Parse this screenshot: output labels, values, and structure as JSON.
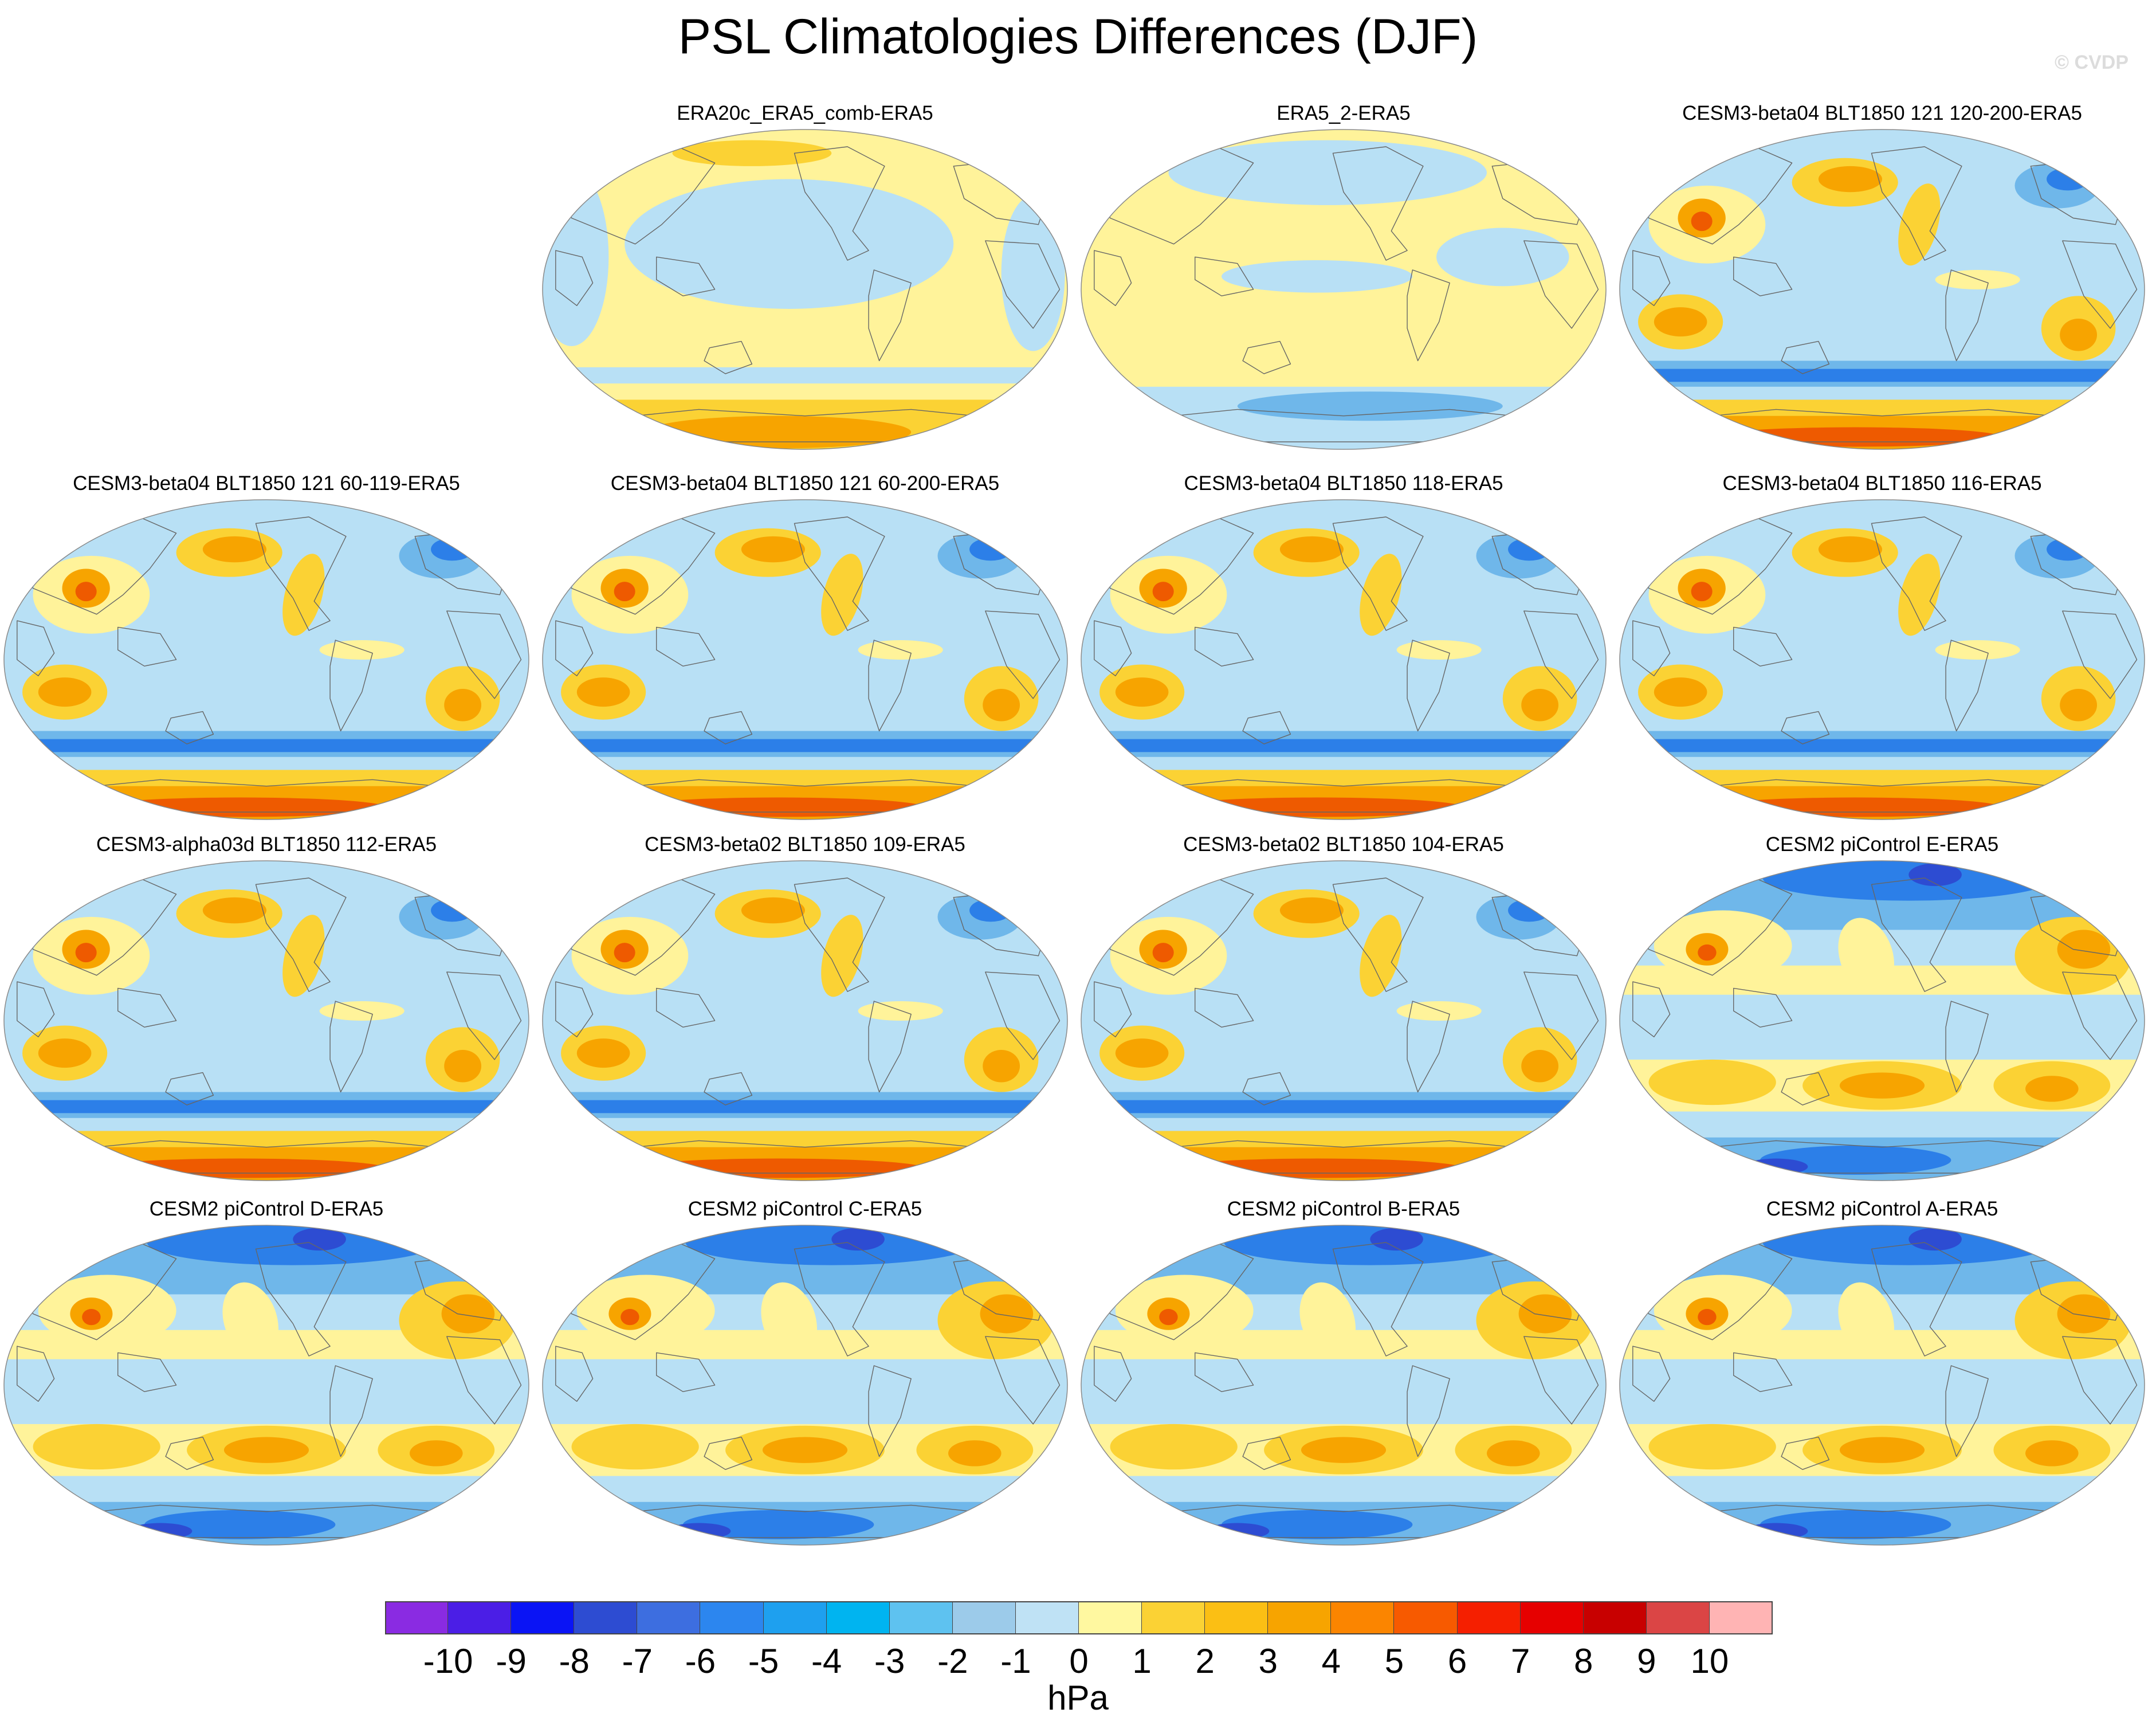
{
  "title": "PSL Climatologies Differences (DJF)",
  "watermark": "© CVDP",
  "colors": {
    "ocean_base": "#b8e0f5",
    "positive_light": "#fff39a",
    "positive_mid": "#fbd234",
    "positive_strong": "#f7a400",
    "positive_high": "#ee5a00",
    "negative_mid": "#6fb7ea",
    "negative_strong": "#2c7fe8",
    "negative_high": "#2d4cd2",
    "coast": "#666666"
  },
  "panels": [
    {
      "title": "ERA20c_ERA5_comb-ERA5",
      "style": "era20c"
    },
    {
      "title": "ERA5_2-ERA5",
      "style": "era5"
    },
    {
      "title": "CESM3-beta04 BLT1850 121 120-200-ERA5",
      "style": "cesm3"
    },
    {
      "title": "CESM3-beta04 BLT1850 121 60-119-ERA5",
      "style": "cesm3"
    },
    {
      "title": "CESM3-beta04 BLT1850 121 60-200-ERA5",
      "style": "cesm3"
    },
    {
      "title": "CESM3-beta04 BLT1850 118-ERA5",
      "style": "cesm3"
    },
    {
      "title": "CESM3-beta04 BLT1850 116-ERA5",
      "style": "cesm3"
    },
    {
      "title": "CESM3-alpha03d BLT1850 112-ERA5",
      "style": "cesm3"
    },
    {
      "title": "CESM3-beta02 BLT1850 109-ERA5",
      "style": "cesm3"
    },
    {
      "title": "CESM3-beta02 BLT1850 104-ERA5",
      "style": "cesm3"
    },
    {
      "title": "CESM2 piControl E-ERA5",
      "style": "cesm2"
    },
    {
      "title": "CESM2 piControl D-ERA5",
      "style": "cesm2"
    },
    {
      "title": "CESM2 piControl C-ERA5",
      "style": "cesm2"
    },
    {
      "title": "CESM2 piControl B-ERA5",
      "style": "cesm2"
    },
    {
      "title": "CESM2 piControl A-ERA5",
      "style": "cesm2"
    }
  ],
  "colorbar": {
    "units": "hPa",
    "labels": [
      "-10",
      "-9",
      "-8",
      "-7",
      "-6",
      "-5",
      "-4",
      "-3",
      "-2",
      "-1",
      "0",
      "1",
      "2",
      "3",
      "4",
      "5",
      "6",
      "7",
      "8",
      "9",
      "10"
    ],
    "colors": [
      "#8a2be2",
      "#4b1ee6",
      "#0a14f5",
      "#2d4cd2",
      "#3d6ee0",
      "#2c86ef",
      "#1ea0ef",
      "#00b4f0",
      "#5ec2f0",
      "#9ccbea",
      "#bfe2f5",
      "#fff8a0",
      "#fbd234",
      "#fbbf14",
      "#f7a400",
      "#fb8500",
      "#f75a00",
      "#f51f00",
      "#e60000",
      "#c80000",
      "#db4545",
      "#ffb4b4"
    ]
  }
}
